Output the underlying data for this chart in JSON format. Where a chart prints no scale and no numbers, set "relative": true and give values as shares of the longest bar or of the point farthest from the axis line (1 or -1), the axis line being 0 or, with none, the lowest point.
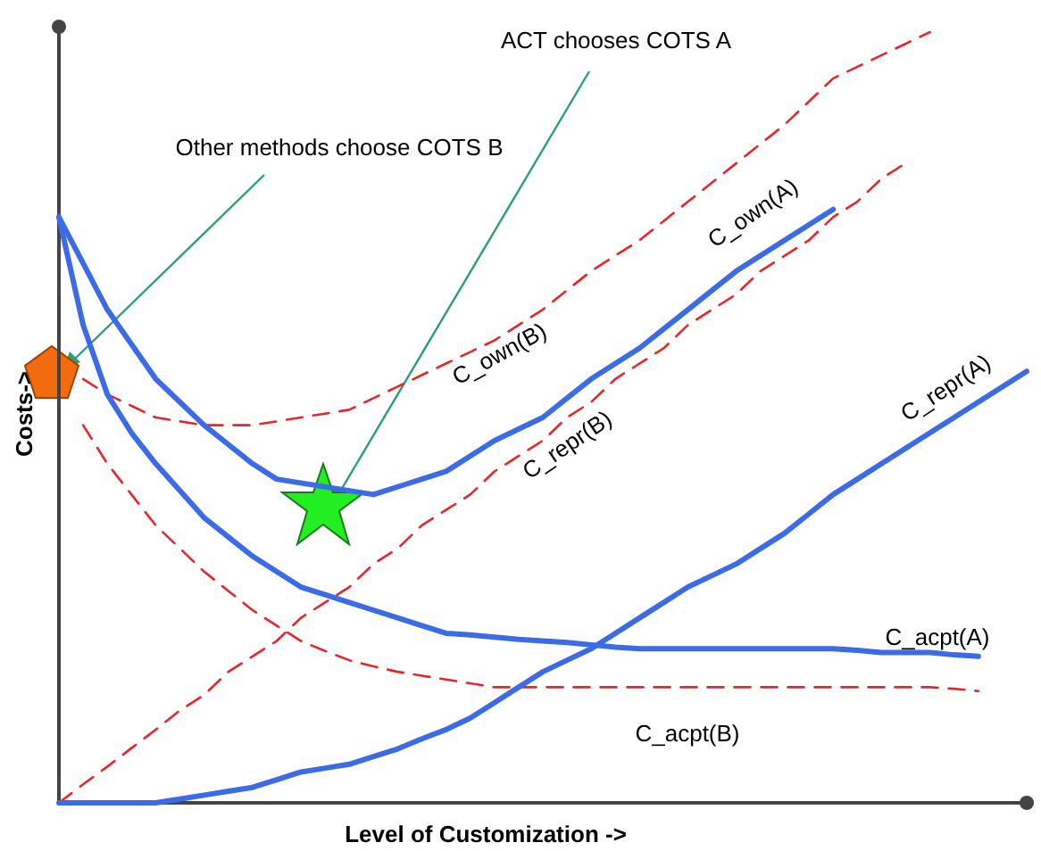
{
  "chart_data": {
    "type": "line",
    "relative": true,
    "xlabel": "Level of Customization ->",
    "ylabel": "Costs->",
    "marker": "none",
    "legend": false,
    "annotations": [
      "ACT chooses COTS A",
      "Other methods choose COTS B"
    ],
    "categories": [
      null,
      null,
      null,
      null,
      null,
      null,
      null,
      null,
      null,
      null,
      null,
      null,
      null,
      null,
      null,
      null,
      null,
      null,
      null,
      null,
      null,
      null,
      null,
      null,
      null,
      null,
      null,
      null,
      null,
      null,
      null,
      null,
      null,
      null,
      null,
      null,
      null,
      null,
      null,
      null,
      null
    ],
    "series": [
      {
        "name": "C_own(A)",
        "color": "#3b6be6",
        "values": [
          0.76,
          0.7,
          0.64,
          0.595,
          0.55,
          0.52,
          0.49,
          0.465,
          0.44,
          0.42,
          null,
          null,
          null,
          0.4,
          0.41,
          0.42,
          0.43,
          0.45,
          0.47,
          0.485,
          0.5,
          0.525,
          0.55,
          0.57,
          0.59,
          0.615,
          0.64,
          0.665,
          0.69,
          0.71,
          0.73,
          0.75,
          0.77,
          null,
          null,
          null,
          null,
          null,
          null,
          null,
          null
        ]
      },
      {
        "name": "C_acpt(A)",
        "color": "#3b6be6",
        "values": [
          0.76,
          0.62,
          0.53,
          0.48,
          0.44,
          0.405,
          0.37,
          0.345,
          0.32,
          0.3,
          0.28,
          0.27,
          0.26,
          0.25,
          0.24,
          0.23,
          0.22,
          0.218,
          0.215,
          0.212,
          0.21,
          0.208,
          0.205,
          0.202,
          0.2,
          0.2,
          0.2,
          0.2,
          0.2,
          0.2,
          0.2,
          0.2,
          0.2,
          0.198,
          0.195,
          0.195,
          0.195,
          0.192,
          0.19,
          null,
          null
        ]
      },
      {
        "name": "C_repr(A)",
        "color": "#3b6be6",
        "values": [
          0,
          0,
          0,
          0,
          0,
          0.005,
          0.01,
          0.015,
          0.02,
          0.03,
          0.04,
          0.045,
          0.05,
          0.06,
          0.07,
          0.083,
          0.095,
          0.11,
          0.13,
          0.15,
          0.17,
          0.185,
          0.2,
          0.22,
          0.24,
          0.26,
          0.28,
          0.295,
          0.31,
          0.33,
          0.35,
          0.375,
          0.4,
          0.42,
          0.44,
          0.46,
          0.48,
          0.5,
          0.52,
          0.54,
          0.56
        ]
      },
      {
        "name": "C_own(B)",
        "color": "#e8262a",
        "line_style": "dashed",
        "values": [
          null,
          0.55,
          0.53,
          0.515,
          0.5,
          0.495,
          0.49,
          0.49,
          0.49,
          0.495,
          0.5,
          0.505,
          0.51,
          0.525,
          0.54,
          0.555,
          0.57,
          0.585,
          0.6,
          0.62,
          0.64,
          0.665,
          0.69,
          0.71,
          0.73,
          0.755,
          0.78,
          0.805,
          0.83,
          0.855,
          0.88,
          0.91,
          0.94,
          0.955,
          0.97,
          0.985,
          1,
          null,
          null,
          null,
          null
        ]
      },
      {
        "name": "C_repr(B)",
        "color": "#e8262a",
        "line_style": "dashed",
        "values": [
          0,
          0.024,
          0.047,
          0.071,
          0.095,
          0.12,
          0.14,
          0.17,
          0.19,
          0.21,
          0.24,
          0.26,
          0.28,
          0.31,
          0.33,
          0.36,
          0.38,
          0.4,
          0.43,
          0.45,
          0.47,
          0.5,
          0.52,
          0.55,
          0.57,
          0.59,
          0.62,
          0.64,
          0.66,
          0.69,
          0.71,
          0.73,
          0.76,
          0.78,
          0.81,
          0.83,
          null,
          null,
          null,
          null,
          null
        ]
      },
      {
        "name": "C_acpt(B)",
        "color": "#e8262a",
        "line_style": "dashed",
        "values": [
          null,
          0.49,
          0.44,
          0.4,
          0.36,
          0.33,
          0.3,
          0.275,
          0.25,
          0.23,
          0.21,
          0.197,
          0.185,
          0.177,
          0.17,
          0.165,
          0.16,
          0.155,
          0.15,
          0.15,
          0.15,
          0.15,
          0.15,
          0.15,
          0.15,
          0.15,
          0.15,
          0.15,
          0.15,
          0.15,
          0.15,
          0.15,
          0.15,
          0.15,
          0.15,
          0.15,
          0.15,
          0.148,
          0.145,
          null,
          null
        ]
      }
    ]
  }
}
